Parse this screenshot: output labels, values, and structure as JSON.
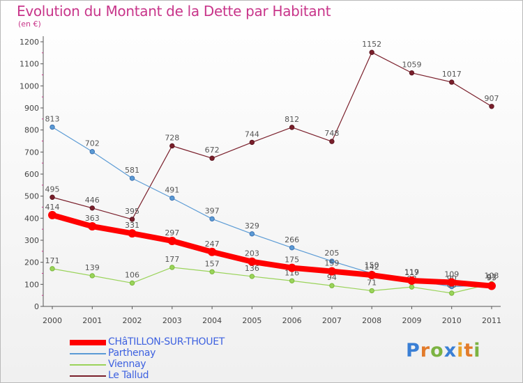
{
  "header": {
    "title": "Evolution du Montant de la Dette par Habitant",
    "subtitle": "(en €)"
  },
  "brand": {
    "letters": [
      "P",
      "r",
      "o",
      "x",
      "i",
      "t",
      "i"
    ],
    "colors": [
      "#3a7fd5",
      "#e27b2b",
      "#7cb342",
      "#3a7fd5",
      "#e8a32a",
      "#e27b2b",
      "#7cb342"
    ]
  },
  "chart_data": {
    "type": "line",
    "title": "Evolution du Montant de la Dette par Habitant",
    "subtitle": "(en €)",
    "x": [
      "2000",
      "2001",
      "2002",
      "2003",
      "2004",
      "2005",
      "2006",
      "2007",
      "2008",
      "2009",
      "2010",
      "2011"
    ],
    "ylim": [
      0,
      1200
    ],
    "yticks": [
      0,
      100,
      200,
      300,
      400,
      500,
      600,
      700,
      800,
      900,
      1000,
      1100,
      1200
    ],
    "grid": false,
    "legend": "bottom-left",
    "series": [
      {
        "name": "Le Tallud",
        "color": "#7a1f2b",
        "marker": "#5c1620",
        "values": [
          495,
          446,
          395,
          728,
          672,
          744,
          812,
          748,
          1152,
          1059,
          1017,
          907
        ],
        "labels": [
          "495",
          "446",
          "395",
          "728",
          "672",
          "744",
          "812",
          "748",
          "1152",
          "1059",
          "1017",
          "907"
        ]
      },
      {
        "name": "Parthenay",
        "color": "#5b9bd5",
        "marker": "#3a6fb0",
        "values": [
          813,
          702,
          581,
          491,
          397,
          329,
          266,
          205,
          150,
          119,
          90,
          97
        ],
        "labels": [
          "813",
          "702",
          "581",
          "491",
          "397",
          "329",
          "266",
          "205",
          "150",
          "119",
          "90",
          "97"
        ]
      },
      {
        "name": "Viennay",
        "color": "#9ad35a",
        "marker": "#7ab83a",
        "values": [
          171,
          139,
          106,
          177,
          157,
          136,
          116,
          94,
          71,
          88,
          60,
          103
        ],
        "labels": [
          "171",
          "139",
          "106",
          "177",
          "157",
          "136",
          "116",
          "94",
          "71",
          "88",
          "60",
          "103"
        ]
      },
      {
        "name": "CHâTILLON-SUR-THOUET",
        "color": "#ff0000",
        "marker": "#ff0000",
        "values": [
          414,
          363,
          331,
          297,
          247,
          203,
          175,
          159,
          142,
          117,
          109,
          93
        ],
        "labels": [
          "414",
          "363",
          "331",
          "297",
          "247",
          "203",
          "175",
          "159",
          "142",
          "117",
          "109",
          "93"
        ]
      }
    ]
  }
}
